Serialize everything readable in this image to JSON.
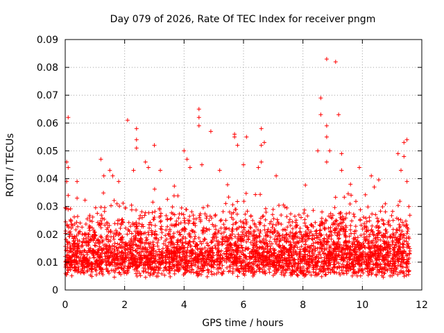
{
  "chart_data": {
    "type": "scatter",
    "title": "Day 079 of 2026, Rate Of TEC Index for receiver pngm",
    "xlabel": "GPS time / hours",
    "ylabel": "ROTI / TECUs",
    "xlim": [
      0,
      12
    ],
    "ylim": [
      0,
      0.09
    ],
    "x_ticks": [
      0,
      2,
      4,
      6,
      8,
      10,
      12
    ],
    "y_ticks": [
      0,
      0.01,
      0.02,
      0.03,
      0.04,
      0.05,
      0.06,
      0.07,
      0.08,
      0.09
    ],
    "x_tick_labels": [
      "0",
      "2",
      "4",
      "6",
      "8",
      "10",
      "12"
    ],
    "y_tick_labels": [
      "0",
      "0.01",
      "0.02",
      "0.03",
      "0.04",
      "0.05",
      "0.06",
      "0.07",
      "0.08",
      "0.09"
    ],
    "grid": true,
    "marker": "+",
    "color": "#ff0000",
    "series": [
      {
        "name": "ROTI",
        "x_range": [
          0,
          11.6
        ],
        "typical_range": [
          0.005,
          0.03
        ],
        "points": [
          [
            0.1,
            0.062
          ],
          [
            0.05,
            0.046
          ],
          [
            0.05,
            0.039
          ],
          [
            0.1,
            0.044
          ],
          [
            0.1,
            0.034
          ],
          [
            0.4,
            0.039
          ],
          [
            0.4,
            0.033
          ],
          [
            1.2,
            0.047
          ],
          [
            1.3,
            0.041
          ],
          [
            1.5,
            0.043
          ],
          [
            1.6,
            0.041
          ],
          [
            1.8,
            0.039
          ],
          [
            2.1,
            0.061
          ],
          [
            2.4,
            0.058
          ],
          [
            2.4,
            0.054
          ],
          [
            2.4,
            0.051
          ],
          [
            2.3,
            0.043
          ],
          [
            2.7,
            0.046
          ],
          [
            2.8,
            0.044
          ],
          [
            3.0,
            0.052
          ],
          [
            3.2,
            0.043
          ],
          [
            4.0,
            0.05
          ],
          [
            4.1,
            0.047
          ],
          [
            4.2,
            0.044
          ],
          [
            4.5,
            0.065
          ],
          [
            4.5,
            0.062
          ],
          [
            4.5,
            0.059
          ],
          [
            4.6,
            0.045
          ],
          [
            4.9,
            0.057
          ],
          [
            5.2,
            0.043
          ],
          [
            5.7,
            0.056
          ],
          [
            5.7,
            0.055
          ],
          [
            5.8,
            0.052
          ],
          [
            6.1,
            0.055
          ],
          [
            6.0,
            0.045
          ],
          [
            6.6,
            0.058
          ],
          [
            6.6,
            0.052
          ],
          [
            6.7,
            0.053
          ],
          [
            6.6,
            0.046
          ],
          [
            6.5,
            0.044
          ],
          [
            7.1,
            0.041
          ],
          [
            8.5,
            0.05
          ],
          [
            8.6,
            0.069
          ],
          [
            8.6,
            0.063
          ],
          [
            8.8,
            0.083
          ],
          [
            8.8,
            0.059
          ],
          [
            8.8,
            0.055
          ],
          [
            8.9,
            0.05
          ],
          [
            8.8,
            0.046
          ],
          [
            9.1,
            0.082
          ],
          [
            9.2,
            0.063
          ],
          [
            9.3,
            0.049
          ],
          [
            9.3,
            0.043
          ],
          [
            9.6,
            0.038
          ],
          [
            9.9,
            0.044
          ],
          [
            10.3,
            0.041
          ],
          [
            10.4,
            0.037
          ],
          [
            11.2,
            0.049
          ],
          [
            11.4,
            0.053
          ],
          [
            11.4,
            0.048
          ],
          [
            11.5,
            0.054
          ],
          [
            11.3,
            0.043
          ],
          [
            11.5,
            0.039
          ]
        ]
      }
    ]
  }
}
